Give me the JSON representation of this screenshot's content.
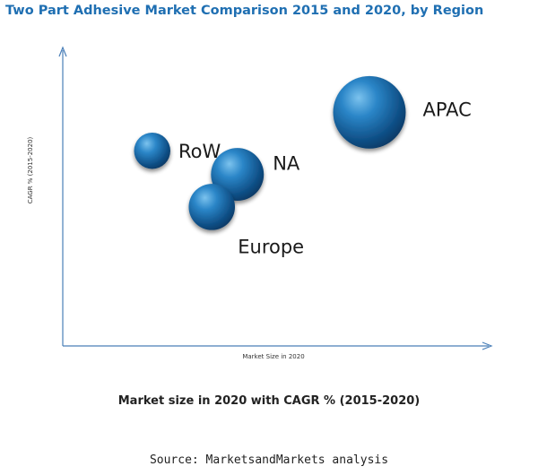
{
  "chart_data": {
    "type": "scatter",
    "title": "Two Part Adhesive Market Comparison 2015 and 2020, by Region",
    "xlabel": "Market Size in 2020",
    "ylabel": "CAGR % (2015-2020)",
    "xlim": [
      0,
      100
    ],
    "ylim": [
      0,
      100
    ],
    "grid": false,
    "legend": "none",
    "bubble_color": "#1a6cae",
    "points": [
      {
        "label": "RoW",
        "x": 21,
        "y": 66,
        "size": 22
      },
      {
        "label": "NA",
        "x": 41,
        "y": 58,
        "size": 32
      },
      {
        "label": "Europe",
        "x": 35,
        "y": 47,
        "size": 28
      },
      {
        "label": "APAC",
        "x": 72,
        "y": 79,
        "size": 44
      }
    ]
  },
  "caption": "Market size in 2020 with CAGR % (2015-2020)",
  "source": "Source: MarketsandMarkets analysis"
}
